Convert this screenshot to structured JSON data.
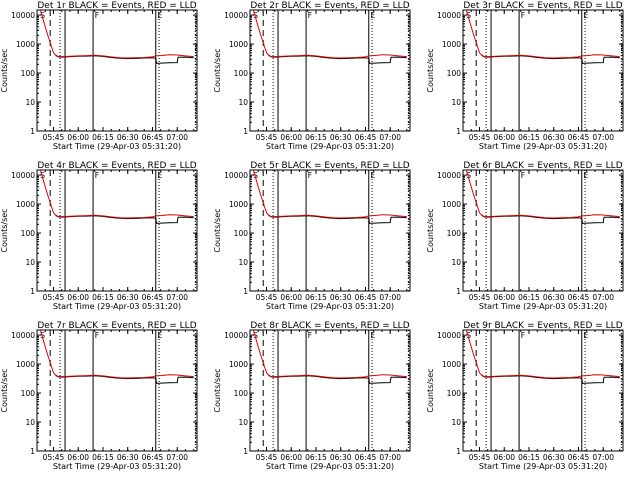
{
  "figure": {
    "colors": {
      "events": "#000000",
      "lld": "#dd0000",
      "axes": "#000000"
    },
    "panel_template": {
      "type": "line",
      "xlabel": "Start Time (29-Apr-03 05:31:20)",
      "ylabel": "Counts/sec",
      "xlim": [
        "05:35",
        "07:12"
      ],
      "xticks": [
        "05:45",
        "06:00",
        "06:15",
        "06:30",
        "06:45",
        "07:00"
      ],
      "ylim": [
        1,
        15000
      ],
      "yscale": "log",
      "yticks": [
        "1",
        "10",
        "100",
        "1000",
        "10000"
      ],
      "grid": false,
      "legend": "title",
      "vlines": [
        {
          "t": "05:43",
          "style": "dashed"
        },
        {
          "t": "05:49",
          "style": "dotted"
        },
        {
          "t": "05:52",
          "style": "solid"
        },
        {
          "t": "06:09",
          "style": "solid"
        },
        {
          "t": "06:47",
          "style": "solid"
        },
        {
          "t": "06:49",
          "style": "dotted"
        },
        {
          "t": "07:11",
          "style": "dotted"
        }
      ],
      "vline_labels": [
        {
          "t": "05:37",
          "text": "S"
        },
        {
          "t": "06:10",
          "text": "F"
        },
        {
          "t": "06:48",
          "text": "E"
        }
      ]
    },
    "series_template": {
      "lld": {
        "name": "LLD",
        "x": [
          "05:37",
          "05:41",
          "05:45",
          "05:47",
          "05:50",
          "05:55",
          "06:00",
          "06:05",
          "06:10",
          "06:15",
          "06:20",
          "06:25",
          "06:30",
          "06:35",
          "06:40",
          "06:45",
          "06:47",
          "06:50",
          "06:55",
          "07:00",
          "07:05",
          "07:10"
        ],
        "y": [
          15000,
          2500,
          500,
          380,
          370,
          380,
          390,
          400,
          410,
          390,
          360,
          340,
          330,
          335,
          345,
          360,
          390,
          400,
          430,
          420,
          390,
          370
        ]
      },
      "events": {
        "name": "Events",
        "x": [
          "05:46",
          "05:48",
          "05:50",
          "05:55",
          "06:00",
          "06:05",
          "06:10",
          "06:15",
          "06:20",
          "06:25",
          "06:30",
          "06:35",
          "06:40",
          "06:45",
          "06:47",
          "06:47.5",
          "06:55",
          "07:00",
          "07:00.5",
          "07:05",
          "07:10"
        ],
        "y": [
          430,
          360,
          355,
          370,
          380,
          385,
          395,
          375,
          345,
          325,
          315,
          320,
          330,
          340,
          320,
          215,
          225,
          230,
          350,
          355,
          335
        ]
      }
    }
  },
  "chart_data": [
    {
      "type": "line",
      "title": "Det 1r BLACK = Events, RED = LLD"
    },
    {
      "type": "line",
      "title": "Det 2r BLACK = Events, RED = LLD"
    },
    {
      "type": "line",
      "title": "Det 3r BLACK = Events, RED = LLD"
    },
    {
      "type": "line",
      "title": "Det 4r BLACK = Events, RED = LLD"
    },
    {
      "type": "line",
      "title": "Det 5r BLACK = Events, RED = LLD"
    },
    {
      "type": "line",
      "title": "Det 6r BLACK = Events, RED = LLD"
    },
    {
      "type": "line",
      "title": "Det 7r BLACK = Events, RED = LLD"
    },
    {
      "type": "line",
      "title": "Det 8r BLACK = Events, RED = LLD"
    },
    {
      "type": "line",
      "title": "Det 9r BLACK = Events, RED = LLD"
    }
  ]
}
